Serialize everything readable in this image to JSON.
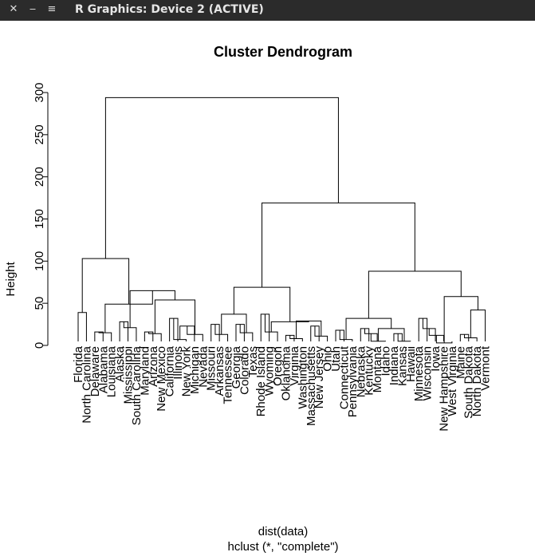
{
  "window": {
    "title": "R Graphics: Device 2 (ACTIVE)",
    "close_glyph": "✕",
    "minimize_glyph": "‒",
    "menu_glyph": "≡"
  },
  "chart_data": {
    "type": "dendrogram",
    "title": "Cluster Dendrogram",
    "ylabel": "Height",
    "xlabel": "dist(data)",
    "sublabel": "hclust (*, \"complete\")",
    "ylim": [
      0,
      300
    ],
    "yticks": [
      0,
      50,
      100,
      150,
      200,
      250,
      300
    ],
    "leaf_order": [
      "Florida",
      "North Carolina",
      "Delaware",
      "Alabama",
      "Louisiana",
      "Alaska",
      "Mississippi",
      "South Carolina",
      "Maryland",
      "Arizona",
      "New Mexico",
      "California",
      "Illinois",
      "New York",
      "Michigan",
      "Nevada",
      "Missouri",
      "Arkansas",
      "Tennessee",
      "Georgia",
      "Colorado",
      "Texas",
      "Rhode Island",
      "Wyoming",
      "Oregon",
      "Oklahoma",
      "Virginia",
      "Washington",
      "Massachusetts",
      "New Jersey",
      "Ohio",
      "Utah",
      "Connecticut",
      "Pennsylvania",
      "Nebraska",
      "Kentucky",
      "Montana",
      "Idaho",
      "Indiana",
      "Kansas",
      "Hawaii",
      "Minnesota",
      "Wisconsin",
      "Iowa",
      "New Hampshire",
      "West Virginia",
      "Maine",
      "South Dakota",
      "North Dakota",
      "Vermont"
    ],
    "merges": [
      {
        "a": "Delaware",
        "b": "Alabama",
        "height": 16
      },
      {
        "a": "Delaware",
        "b": "Louisiana",
        "height": 15
      },
      {
        "a": "Alaska",
        "b": "Mississippi",
        "height": 28
      },
      {
        "a": "Alaska",
        "b": "South Carolina",
        "height": 21
      },
      {
        "a": "Maryland",
        "b": "Arizona",
        "height": 16
      },
      {
        "a": "Maryland",
        "b": "New Mexico",
        "height": 14
      },
      {
        "a": "California",
        "b": "Illinois",
        "height": 32
      },
      {
        "a": "California",
        "b": "New York",
        "height": 7
      },
      {
        "a": "California",
        "b": "Michigan",
        "height": 23
      },
      {
        "a": "California",
        "b": "Nevada",
        "height": 13
      },
      {
        "a": "Maryland",
        "b": "California",
        "height": 54
      },
      {
        "a": "Alaska",
        "b": "Maryland",
        "height": 65
      },
      {
        "a": "Delaware",
        "b": "Alaska",
        "height": 49
      },
      {
        "a": "Florida",
        "b": "North Carolina",
        "height": 39
      },
      {
        "a": "Florida",
        "b": "Delaware",
        "height": 103
      },
      {
        "a": "Missouri",
        "b": "Arkansas",
        "height": 25
      },
      {
        "a": "Missouri",
        "b": "Tennessee",
        "height": 13
      },
      {
        "a": "Georgia",
        "b": "Colorado",
        "height": 25
      },
      {
        "a": "Georgia",
        "b": "Texas",
        "height": 15
      },
      {
        "a": "Missouri",
        "b": "Georgia",
        "height": 37
      },
      {
        "a": "Rhode Island",
        "b": "Wyoming",
        "height": 37
      },
      {
        "a": "Wyoming",
        "b": "Oregon",
        "height": 16
      },
      {
        "a": "Oklahoma",
        "b": "Virginia",
        "height": 12
      },
      {
        "a": "Oklahoma",
        "b": "Washington",
        "height": 8
      },
      {
        "a": "Massachusetts",
        "b": "New Jersey",
        "height": 23
      },
      {
        "a": "Massachusetts",
        "b": "Ohio",
        "height": 11
      },
      {
        "a": "Oklahoma",
        "b": "Massachusetts",
        "height": 29
      },
      {
        "a": "Wyoming",
        "b": "Oklahoma",
        "height": 28
      },
      {
        "a": "Missouri",
        "b": "Rhode Island",
        "height": 69
      },
      {
        "a": "Utah",
        "b": "Connecticut",
        "height": 18
      },
      {
        "a": "Utah",
        "b": "Pennsylvania",
        "height": 7
      },
      {
        "a": "Nebraska",
        "b": "Kentucky",
        "height": 20
      },
      {
        "a": "Kentucky",
        "b": "Montana",
        "height": 14
      },
      {
        "a": "Montana",
        "b": "Idaho",
        "height": 5
      },
      {
        "a": "Indiana",
        "b": "Kansas",
        "height": 14
      },
      {
        "a": "Indiana",
        "b": "Hawaii",
        "height": 5
      },
      {
        "a": "Nebraska",
        "b": "Indiana",
        "height": 20
      },
      {
        "a": "Utah",
        "b": "Nebraska",
        "height": 32
      },
      {
        "a": "Minnesota",
        "b": "Wisconsin",
        "height": 32
      },
      {
        "a": "Wisconsin",
        "b": "Iowa",
        "height": 20
      },
      {
        "a": "Iowa",
        "b": "New Hampshire",
        "height": 12
      },
      {
        "a": "New Hampshire",
        "b": "West Virginia",
        "height": 3
      },
      {
        "a": "Maine",
        "b": "South Dakota",
        "height": 13
      },
      {
        "a": "South Dakota",
        "b": "North Dakota",
        "height": 9
      },
      {
        "a": "Maine",
        "b": "Vermont",
        "height": 42
      },
      {
        "a": "Minnesota",
        "b": "Maine",
        "height": 58
      },
      {
        "a": "Utah",
        "b": "Minnesota",
        "height": 88
      },
      {
        "a": "Missouri",
        "b": "Utah",
        "height": 169
      },
      {
        "a": "Florida",
        "b": "Missouri",
        "height": 294
      }
    ]
  }
}
